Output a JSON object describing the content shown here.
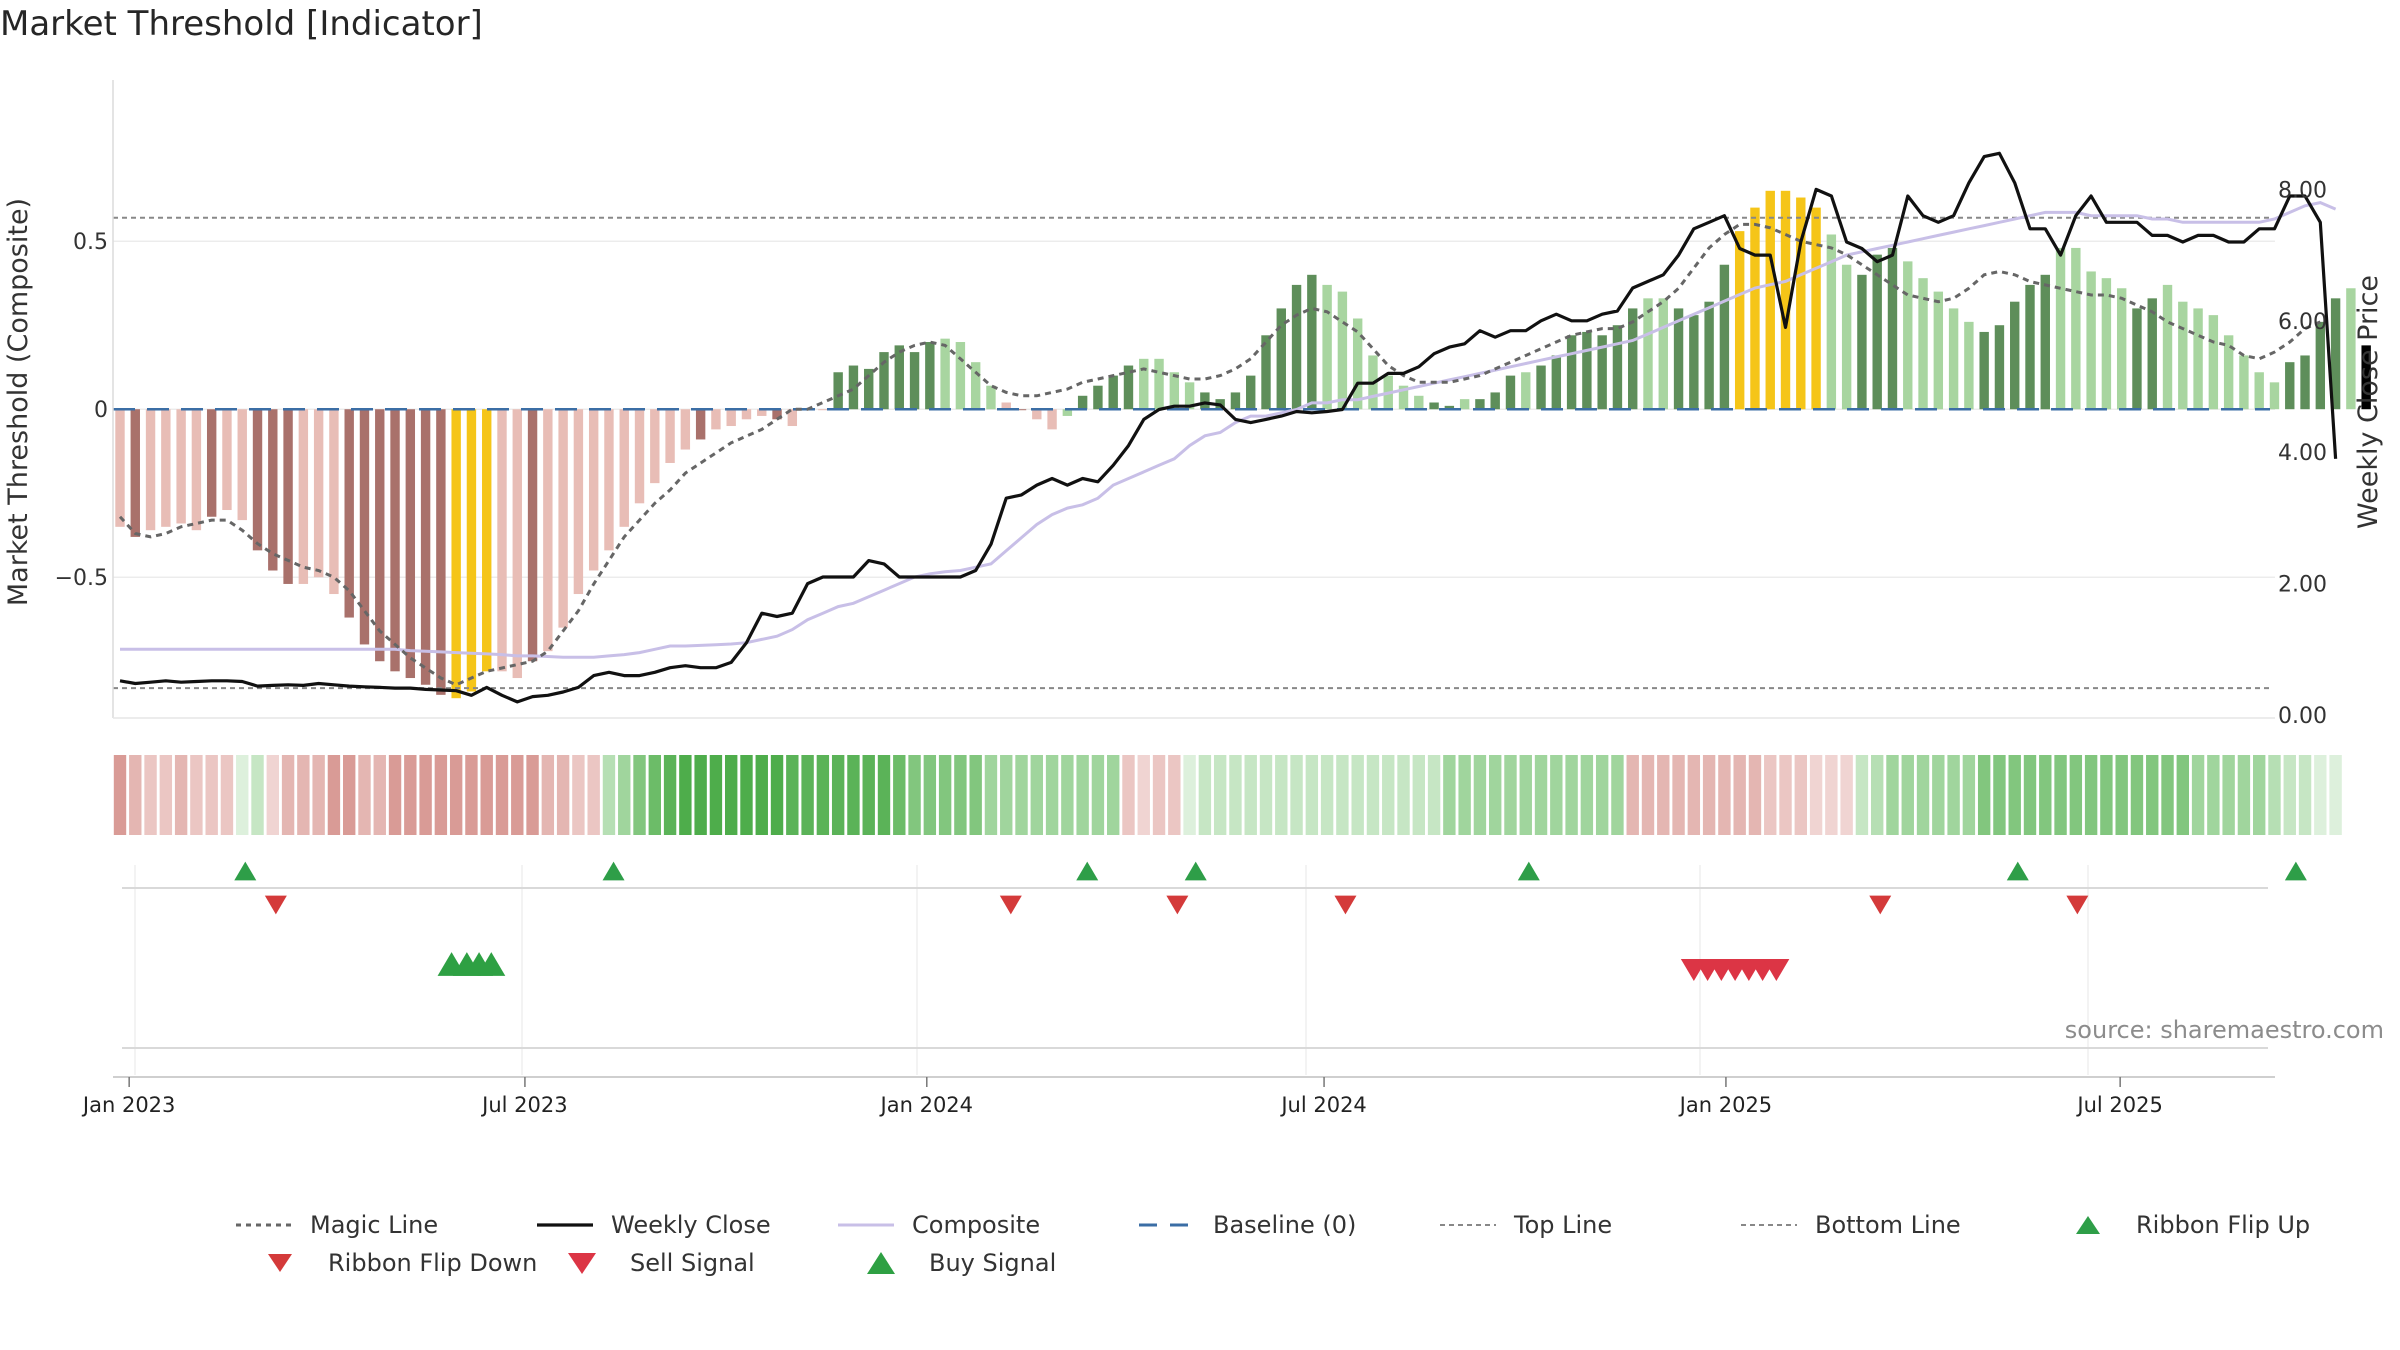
{
  "title": "Market Threshold [Indicator]",
  "source": "source: sharemaestro.com",
  "chart_data": {
    "type": "bar",
    "title": "Market Threshold [Indicator]",
    "y_left_label": "Market Threshold (Composite)",
    "y_right_label": "Weekly Close Price",
    "y_left_ticks": [
      {
        "v": 0.5,
        "label": "0.5"
      },
      {
        "v": 0,
        "label": "0"
      },
      {
        "v": -0.5,
        "label": "−0.5"
      }
    ],
    "y_right_ticks": [
      {
        "v": 0,
        "label": "0.00"
      },
      {
        "v": 2,
        "label": "2.00"
      },
      {
        "v": 4,
        "label": "4.00"
      },
      {
        "v": 6,
        "label": "6.00"
      },
      {
        "v": 8,
        "label": "8.00"
      }
    ],
    "y_left_range": [
      -0.91,
      0.95
    ],
    "y_right_range": [
      0,
      8.6
    ],
    "x_ticks": [
      {
        "i": 0.6,
        "label": "Jan 2023"
      },
      {
        "i": 26.5,
        "label": "Jul 2023"
      },
      {
        "i": 52.8,
        "label": "Jan 2024"
      },
      {
        "i": 78.8,
        "label": "Jul 2024"
      },
      {
        "i": 105.1,
        "label": "Jan 2025"
      },
      {
        "i": 130.9,
        "label": "Jul 2025"
      }
    ],
    "top_line": 0.57,
    "bottom_line": -0.83,
    "baseline": 0,
    "composite": [
      -0.35,
      -0.38,
      -0.36,
      -0.35,
      -0.34,
      -0.36,
      -0.32,
      -0.3,
      -0.33,
      -0.42,
      -0.48,
      -0.52,
      -0.52,
      -0.5,
      -0.55,
      -0.62,
      -0.7,
      -0.75,
      -0.78,
      -0.8,
      -0.82,
      -0.85,
      -0.86,
      -0.84,
      -0.78,
      -0.78,
      -0.8,
      -0.75,
      -0.72,
      -0.65,
      -0.55,
      -0.48,
      -0.42,
      -0.35,
      -0.28,
      -0.22,
      -0.16,
      -0.12,
      -0.09,
      -0.06,
      -0.05,
      -0.03,
      -0.02,
      -0.03,
      -0.05,
      0,
      0,
      0.11,
      0.13,
      0.12,
      0.17,
      0.19,
      0.17,
      0.2,
      0.21,
      0.2,
      0.14,
      0.07,
      0.02,
      0,
      -0.03,
      -0.06,
      -0.02,
      0.04,
      0.07,
      0.1,
      0.13,
      0.15,
      0.15,
      0.11,
      0.08,
      0.05,
      0.03,
      0.05,
      0.1,
      0.22,
      0.3,
      0.37,
      0.4,
      0.37,
      0.35,
      0.27,
      0.16,
      0.1,
      0.07,
      0.04,
      0.02,
      0.01,
      0.03,
      0.03,
      0.05,
      0.1,
      0.11,
      0.13,
      0.16,
      0.22,
      0.23,
      0.22,
      0.25,
      0.3,
      0.33,
      0.33,
      0.3,
      0.28,
      0.32,
      0.43,
      0.53,
      0.6,
      0.65,
      0.65,
      0.63,
      0.6,
      0.52,
      0.43,
      0.4,
      0.46,
      0.48,
      0.44,
      0.39,
      0.35,
      0.3,
      0.26,
      0.23,
      0.25,
      0.32,
      0.37,
      0.4,
      0.48,
      0.48,
      0.41,
      0.39,
      0.36,
      0.3,
      0.33,
      0.37,
      0.32,
      0.3,
      0.28,
      0.22,
      0.16,
      0.11,
      0.08,
      0.14,
      0.16,
      0.26,
      0.33,
      0.36,
      0.19
    ],
    "bar_colors": [
      "#e8bdb6",
      "#a9716b",
      "#e8bdb6",
      "#e8bdb6",
      "#e8bdb6",
      "#e8bdb6",
      "#a9716b",
      "#e8bdb6",
      "#e8bdb6",
      "#a9716b",
      "#a9716b",
      "#a9716b",
      "#e8bdb6",
      "#e8bdb6",
      "#e8bdb6",
      "#a9716b",
      "#a9716b",
      "#a9716b",
      "#a9716b",
      "#a9716b",
      "#a9716b",
      "#a9716b",
      "#f5c518",
      "#f5c518",
      "#f5c518",
      "#e8bdb6",
      "#e8bdb6",
      "#a9716b",
      "#e8bdb6",
      "#e8bdb6",
      "#e8bdb6",
      "#e8bdb6",
      "#e8bdb6",
      "#e8bdb6",
      "#e8bdb6",
      "#e8bdb6",
      "#e8bdb6",
      "#e8bdb6",
      "#a9716b",
      "#e8bdb6",
      "#e8bdb6",
      "#e8bdb6",
      "#e8bdb6",
      "#a9716b",
      "#e8bdb6",
      "#e8bdb6",
      "#e8bdb6",
      "#5e8e5a",
      "#5e8e5a",
      "#5e8e5a",
      "#5e8e5a",
      "#5e8e5a",
      "#5e8e5a",
      "#5e8e5a",
      "#a8d5a0",
      "#a8d5a0",
      "#a8d5a0",
      "#a8d5a0",
      "#e8bdb6",
      "#a9716b",
      "#e8bdb6",
      "#e8bdb6",
      "#a8d5a0",
      "#5e8e5a",
      "#5e8e5a",
      "#5e8e5a",
      "#5e8e5a",
      "#a8d5a0",
      "#a8d5a0",
      "#a8d5a0",
      "#a8d5a0",
      "#5e8e5a",
      "#5e8e5a",
      "#5e8e5a",
      "#5e8e5a",
      "#5e8e5a",
      "#5e8e5a",
      "#5e8e5a",
      "#5e8e5a",
      "#a8d5a0",
      "#a8d5a0",
      "#a8d5a0",
      "#a8d5a0",
      "#a8d5a0",
      "#a8d5a0",
      "#a8d5a0",
      "#5e8e5a",
      "#5e8e5a",
      "#a8d5a0",
      "#5e8e5a",
      "#5e8e5a",
      "#5e8e5a",
      "#a8d5a0",
      "#5e8e5a",
      "#5e8e5a",
      "#5e8e5a",
      "#5e8e5a",
      "#5e8e5a",
      "#5e8e5a",
      "#5e8e5a",
      "#a8d5a0",
      "#a8d5a0",
      "#5e8e5a",
      "#5e8e5a",
      "#5e8e5a",
      "#5e8e5a",
      "#f5c518",
      "#f5c518",
      "#f5c518",
      "#f5c518",
      "#f5c518",
      "#f5c518",
      "#a8d5a0",
      "#a8d5a0",
      "#5e8e5a",
      "#5e8e5a",
      "#5e8e5a",
      "#a8d5a0",
      "#a8d5a0",
      "#a8d5a0",
      "#a8d5a0",
      "#a8d5a0",
      "#5e8e5a",
      "#5e8e5a",
      "#5e8e5a",
      "#5e8e5a",
      "#5e8e5a",
      "#a8d5a0",
      "#a8d5a0",
      "#a8d5a0",
      "#a8d5a0",
      "#a8d5a0",
      "#5e8e5a",
      "#5e8e5a",
      "#a8d5a0",
      "#a8d5a0",
      "#a8d5a0",
      "#a8d5a0",
      "#a8d5a0",
      "#a8d5a0",
      "#a8d5a0",
      "#a8d5a0",
      "#5e8e5a",
      "#5e8e5a",
      "#5e8e5a",
      "#5e8e5a",
      "#a8d5a0"
    ],
    "magic_line": [
      -0.32,
      -0.37,
      -0.38,
      -0.37,
      -0.35,
      -0.34,
      -0.33,
      -0.33,
      -0.36,
      -0.4,
      -0.43,
      -0.45,
      -0.47,
      -0.48,
      -0.5,
      -0.54,
      -0.6,
      -0.66,
      -0.7,
      -0.74,
      -0.77,
      -0.8,
      -0.82,
      -0.8,
      -0.78,
      -0.77,
      -0.76,
      -0.75,
      -0.72,
      -0.66,
      -0.6,
      -0.52,
      -0.45,
      -0.38,
      -0.33,
      -0.28,
      -0.24,
      -0.19,
      -0.16,
      -0.13,
      -0.1,
      -0.08,
      -0.06,
      -0.03,
      0,
      0,
      0.02,
      0.04,
      0.06,
      0.1,
      0.14,
      0.17,
      0.19,
      0.2,
      0.19,
      0.15,
      0.11,
      0.07,
      0.05,
      0.04,
      0.04,
      0.05,
      0.06,
      0.08,
      0.09,
      0.1,
      0.11,
      0.12,
      0.11,
      0.1,
      0.09,
      0.09,
      0.1,
      0.12,
      0.15,
      0.2,
      0.25,
      0.28,
      0.3,
      0.29,
      0.26,
      0.23,
      0.18,
      0.13,
      0.1,
      0.08,
      0.08,
      0.08,
      0.09,
      0.1,
      0.12,
      0.14,
      0.16,
      0.18,
      0.2,
      0.22,
      0.23,
      0.24,
      0.24,
      0.26,
      0.29,
      0.32,
      0.36,
      0.42,
      0.48,
      0.52,
      0.55,
      0.55,
      0.54,
      0.52,
      0.5,
      0.49,
      0.48,
      0.46,
      0.43,
      0.4,
      0.37,
      0.34,
      0.33,
      0.32,
      0.33,
      0.36,
      0.4,
      0.41,
      0.4,
      0.38,
      0.37,
      0.36,
      0.35,
      0.34,
      0.34,
      0.33,
      0.31,
      0.29,
      0.26,
      0.24,
      0.22,
      0.2,
      0.19,
      0.16,
      0.15,
      0.17,
      0.2,
      0.24,
      0.26
    ],
    "weekly_close": [
      0.52,
      0.48,
      0.5,
      0.52,
      0.5,
      0.51,
      0.52,
      0.52,
      0.51,
      0.44,
      0.45,
      0.46,
      0.45,
      0.48,
      0.46,
      0.44,
      0.43,
      0.42,
      0.41,
      0.41,
      0.39,
      0.38,
      0.37,
      0.3,
      0.42,
      0.3,
      0.2,
      0.28,
      0.3,
      0.35,
      0.42,
      0.6,
      0.65,
      0.6,
      0.6,
      0.65,
      0.72,
      0.75,
      0.72,
      0.72,
      0.8,
      1.1,
      1.55,
      1.5,
      1.55,
      2.0,
      2.1,
      2.1,
      2.1,
      2.35,
      2.3,
      2.1,
      2.1,
      2.1,
      2.1,
      2.1,
      2.2,
      2.6,
      3.3,
      3.35,
      3.5,
      3.6,
      3.5,
      3.6,
      3.55,
      3.8,
      4.1,
      4.5,
      4.65,
      4.7,
      4.7,
      4.75,
      4.72,
      4.5,
      4.45,
      4.5,
      4.55,
      4.62,
      4.6,
      4.62,
      4.65,
      5.05,
      5.05,
      5.2,
      5.2,
      5.3,
      5.5,
      5.6,
      5.65,
      5.85,
      5.75,
      5.85,
      5.85,
      6.0,
      6.1,
      6.0,
      6.0,
      6.1,
      6.15,
      6.5,
      6.6,
      6.7,
      7.0,
      7.4,
      7.5,
      7.6,
      7.1,
      7.0,
      7.0,
      5.9,
      7.2,
      8.0,
      7.9,
      7.2,
      7.1,
      6.9,
      7.0,
      7.9,
      7.6,
      7.5,
      7.6,
      8.1,
      8.5,
      8.55,
      8.1,
      7.4,
      7.4,
      7.0,
      7.6,
      7.9,
      7.5,
      7.5,
      7.5,
      7.3,
      7.3,
      7.2,
      7.3,
      7.3,
      7.2,
      7.2,
      7.4,
      7.4,
      7.9,
      7.9,
      7.5,
      3.9
    ],
    "composite_line": [
      1.0,
      1.0,
      1.0,
      1.0,
      1.0,
      1.0,
      1.0,
      1.0,
      1.0,
      1.0,
      1.0,
      1.0,
      1.0,
      1.0,
      1.0,
      1.0,
      1.0,
      1.0,
      1.0,
      0.98,
      0.97,
      0.96,
      0.95,
      0.94,
      0.93,
      0.92,
      0.9,
      0.9,
      0.89,
      0.88,
      0.88,
      0.88,
      0.9,
      0.92,
      0.95,
      1.0,
      1.05,
      1.05,
      1.06,
      1.07,
      1.08,
      1.1,
      1.15,
      1.2,
      1.3,
      1.45,
      1.55,
      1.65,
      1.7,
      1.8,
      1.9,
      2.0,
      2.1,
      2.15,
      2.18,
      2.2,
      2.25,
      2.3,
      2.5,
      2.7,
      2.9,
      3.05,
      3.15,
      3.2,
      3.3,
      3.5,
      3.6,
      3.7,
      3.8,
      3.9,
      4.1,
      4.25,
      4.3,
      4.45,
      4.55,
      4.55,
      4.6,
      4.65,
      4.75,
      4.75,
      4.8,
      4.8,
      4.85,
      4.9,
      4.95,
      5.0,
      5.05,
      5.1,
      5.15,
      5.2,
      5.25,
      5.3,
      5.35,
      5.4,
      5.45,
      5.5,
      5.55,
      5.6,
      5.65,
      5.7,
      5.8,
      5.9,
      6.0,
      6.1,
      6.2,
      6.3,
      6.4,
      6.5,
      6.55,
      6.6,
      6.7,
      6.8,
      6.9,
      7.0,
      7.05,
      7.1,
      7.15,
      7.2,
      7.25,
      7.3,
      7.35,
      7.4,
      7.45,
      7.5,
      7.55,
      7.6,
      7.65,
      7.65,
      7.65,
      7.6,
      7.6,
      7.6,
      7.6,
      7.55,
      7.55,
      7.5,
      7.5,
      7.5,
      7.5,
      7.5,
      7.5,
      7.55,
      7.65,
      7.75,
      7.8,
      7.7
    ],
    "ribbon": [
      "#d99b96",
      "#e4b6b2",
      "#ebc6c3",
      "#ebc6c3",
      "#e4b6b2",
      "#ebc6c3",
      "#ebc6c3",
      "#ebc6c3",
      "#ddf0dc",
      "#c6e6c4",
      "#f0d4d2",
      "#e4b6b2",
      "#e4b6b2",
      "#e4b6b2",
      "#d99b96",
      "#d99b96",
      "#e4b6b2",
      "#e4b6b2",
      "#d99b96",
      "#d99b96",
      "#d99b96",
      "#d99b96",
      "#d99b96",
      "#d99b96",
      "#d99b96",
      "#d99b96",
      "#d99b96",
      "#d99b96",
      "#e4b6b2",
      "#e4b6b2",
      "#ebc6c3",
      "#ebc6c3",
      "#b6dfb4",
      "#a0d59d",
      "#82c67e",
      "#6cbc68",
      "#5bb358",
      "#4ead4b",
      "#4ead4b",
      "#4ead4b",
      "#4ead4b",
      "#4ead4b",
      "#4ead4b",
      "#4ead4b",
      "#5bb358",
      "#5bb358",
      "#5bb358",
      "#5bb358",
      "#5bb358",
      "#5bb358",
      "#5bb358",
      "#6cbc68",
      "#82c67e",
      "#82c67e",
      "#82c67e",
      "#82c67e",
      "#82c67e",
      "#a0d59d",
      "#a0d59d",
      "#a0d59d",
      "#a0d59d",
      "#a0d59d",
      "#a0d59d",
      "#a0d59d",
      "#a0d59d",
      "#a0d59d",
      "#ebc6c3",
      "#f0d4d2",
      "#ebc6c3",
      "#ebc6c3",
      "#ddf0dc",
      "#c6e6c4",
      "#c6e6c4",
      "#c6e6c4",
      "#c6e6c4",
      "#c6e6c4",
      "#c6e6c4",
      "#c6e6c4",
      "#c6e6c4",
      "#c6e6c4",
      "#c6e6c4",
      "#c6e6c4",
      "#c6e6c4",
      "#c6e6c4",
      "#c6e6c4",
      "#c6e6c4",
      "#c6e6c4",
      "#a0d59d",
      "#a0d59d",
      "#a0d59d",
      "#a0d59d",
      "#a0d59d",
      "#a0d59d",
      "#a0d59d",
      "#a0d59d",
      "#a0d59d",
      "#a0d59d",
      "#a0d59d",
      "#a0d59d",
      "#e4b6b2",
      "#e4b6b2",
      "#e4b6b2",
      "#e4b6b2",
      "#e4b6b2",
      "#e4b6b2",
      "#e4b6b2",
      "#e4b6b2",
      "#e4b6b2",
      "#ebc6c3",
      "#ebc6c3",
      "#ebc6c3",
      "#f0d4d2",
      "#f0d4d2",
      "#f0d4d2",
      "#c6e6c4",
      "#b6dfb4",
      "#a0d59d",
      "#a0d59d",
      "#a0d59d",
      "#a0d59d",
      "#a0d59d",
      "#a0d59d",
      "#82c67e",
      "#82c67e",
      "#82c67e",
      "#82c67e",
      "#82c67e",
      "#82c67e",
      "#82c67e",
      "#82c67e",
      "#82c67e",
      "#82c67e",
      "#82c67e",
      "#82c67e",
      "#82c67e",
      "#82c67e",
      "#a0d59d",
      "#a0d59d",
      "#a0d59d",
      "#a0d59d",
      "#a0d59d",
      "#b6dfb4",
      "#c6e6c4",
      "#c6e6c4",
      "#ddf0dc",
      "#ddf0dc"
    ],
    "ribbon_flip_up": [
      8.2,
      32.3,
      63.3,
      70.4,
      92.2,
      124.2,
      142.4
    ],
    "ribbon_flip_down": [
      10.2,
      58.3,
      69.2,
      80.2,
      115.2,
      128.1
    ],
    "buy_signal": [
      21.7,
      22.7,
      23.5,
      24.3
    ],
    "sell_signal": [
      103.0,
      103.9,
      104.8,
      105.7,
      106.6,
      107.5,
      108.4
    ],
    "legend": [
      {
        "key": "magic",
        "label": "Magic Line",
        "color": "#666666"
      },
      {
        "key": "close",
        "label": "Weekly Close",
        "color": "#111111"
      },
      {
        "key": "composite",
        "label": "Composite",
        "color": "#c8bfe7"
      },
      {
        "key": "baseline",
        "label": "Baseline (0)",
        "color": "#3b6ea5"
      },
      {
        "key": "top",
        "label": "Top Line",
        "color": "#888888"
      },
      {
        "key": "bottom",
        "label": "Bottom Line",
        "color": "#888888"
      },
      {
        "key": "flipup",
        "label": "Ribbon Flip Up",
        "color": "#2e9e48"
      },
      {
        "key": "flipdown",
        "label": "Ribbon Flip Down",
        "color": "#d43a3a"
      },
      {
        "key": "sell",
        "label": "Sell Signal",
        "color": "#dc3545"
      },
      {
        "key": "buy",
        "label": "Buy Signal",
        "color": "#2ea043"
      }
    ]
  }
}
